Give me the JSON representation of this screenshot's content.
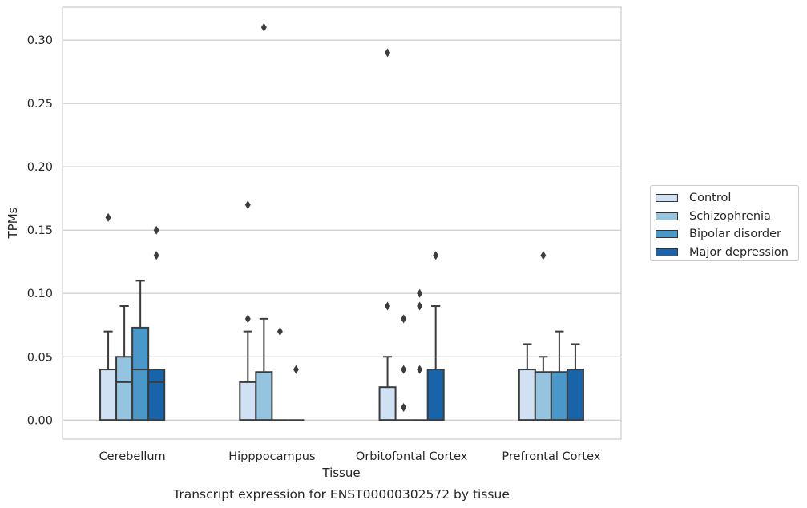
{
  "chart_data": {
    "type": "boxplot",
    "title": "Transcript expression for ENST00000302572 by tissue",
    "xlabel": "Tissue",
    "ylabel": "TPMs",
    "ylim": [
      -0.015,
      0.326
    ],
    "yticks": [
      "0.00",
      "0.05",
      "0.10",
      "0.15",
      "0.20",
      "0.25",
      "0.30"
    ],
    "yticks_values": [
      0,
      0.05,
      0.1,
      0.15,
      0.2,
      0.25,
      0.3
    ],
    "categories": [
      "Cerebellum",
      "Hipppocampus",
      "Orbitofontal Cortex",
      "Prefrontal Cortex"
    ],
    "grid": true,
    "legend_position": "right",
    "series": [
      {
        "name": "Control",
        "color": "#cfe1f2",
        "boxes": [
          {
            "q1": 0,
            "median": 0,
            "q3": 0.04,
            "whisker_low": 0,
            "whisker_high": 0.07,
            "outliers": [
              0.16
            ]
          },
          {
            "q1": 0,
            "median": 0,
            "q3": 0.03,
            "whisker_low": 0,
            "whisker_high": 0.07,
            "outliers": [
              0.08,
              0.17
            ]
          },
          {
            "q1": 0,
            "median": 0,
            "q3": 0.026,
            "whisker_low": 0,
            "whisker_high": 0.05,
            "outliers": [
              0.09,
              0.29
            ]
          },
          {
            "q1": 0,
            "median": 0,
            "q3": 0.04,
            "whisker_low": 0,
            "whisker_high": 0.06,
            "outliers": []
          }
        ]
      },
      {
        "name": "Schizophrenia",
        "color": "#94c4df",
        "boxes": [
          {
            "q1": 0,
            "median": 0.03,
            "q3": 0.05,
            "whisker_low": 0,
            "whisker_high": 0.09,
            "outliers": []
          },
          {
            "q1": 0,
            "median": 0,
            "q3": 0.038,
            "whisker_low": 0,
            "whisker_high": 0.08,
            "outliers": [
              0.31
            ]
          },
          {
            "q1": 0,
            "median": 0,
            "q3": 0,
            "whisker_low": 0,
            "whisker_high": 0,
            "outliers": [
              0.01,
              0.04,
              0.08
            ]
          },
          {
            "q1": 0,
            "median": 0,
            "q3": 0.038,
            "whisker_low": 0,
            "whisker_high": 0.05,
            "outliers": [
              0.13
            ]
          }
        ]
      },
      {
        "name": "Bipolar disorder",
        "color": "#4a98c9",
        "boxes": [
          {
            "q1": 0,
            "median": 0.04,
            "q3": 0.073,
            "whisker_low": 0,
            "whisker_high": 0.11,
            "outliers": []
          },
          {
            "q1": 0,
            "median": 0,
            "q3": 0,
            "whisker_low": 0,
            "whisker_high": 0,
            "outliers": [
              0.07
            ]
          },
          {
            "q1": 0,
            "median": 0,
            "q3": 0,
            "whisker_low": 0,
            "whisker_high": 0,
            "outliers": [
              0.04,
              0.09,
              0.1
            ]
          },
          {
            "q1": 0,
            "median": 0,
            "q3": 0.038,
            "whisker_low": 0,
            "whisker_high": 0.07,
            "outliers": []
          }
        ]
      },
      {
        "name": "Major depression",
        "color": "#1764ab",
        "boxes": [
          {
            "q1": 0,
            "median": 0.03,
            "q3": 0.04,
            "whisker_low": 0,
            "whisker_high": 0.04,
            "outliers": [
              0.13,
              0.15
            ]
          },
          {
            "q1": 0,
            "median": 0,
            "q3": 0,
            "whisker_low": 0,
            "whisker_high": 0,
            "outliers": [
              0.04
            ]
          },
          {
            "q1": 0,
            "median": 0,
            "q3": 0.04,
            "whisker_low": 0,
            "whisker_high": 0.09,
            "outliers": [
              0.13
            ]
          },
          {
            "q1": 0,
            "median": 0,
            "q3": 0.04,
            "whisker_low": 0,
            "whisker_high": 0.06,
            "outliers": []
          }
        ]
      }
    ]
  }
}
